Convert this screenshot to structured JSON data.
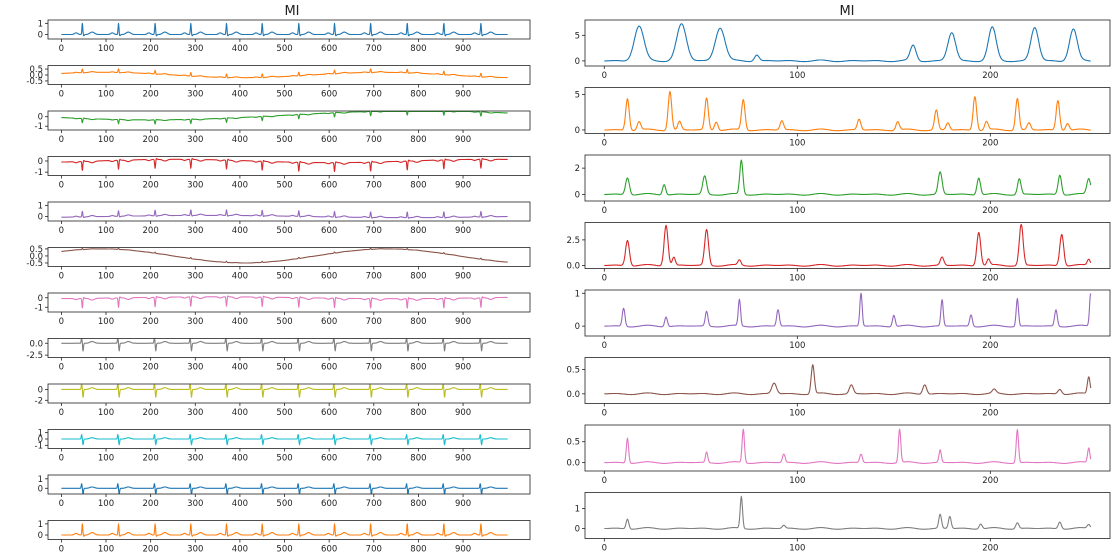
{
  "colors": [
    "#1f77b4",
    "#ff7f0e",
    "#2ca02c",
    "#d62728",
    "#9467bd",
    "#8c564b",
    "#e377c2",
    "#7f7f7f",
    "#bcbd22",
    "#17becf",
    "#1f77b4",
    "#ff7f0e"
  ],
  "chart_data": [
    {
      "type": "line",
      "title": "MI",
      "x_ticks": [
        "0",
        "100",
        "200",
        "300",
        "400",
        "500",
        "600",
        "700",
        "800",
        "900"
      ],
      "xlim": [
        -30,
        1050
      ],
      "beat_positions": [
        47,
        128,
        210,
        290,
        370,
        450,
        532,
        612,
        693,
        775,
        857,
        940
      ],
      "panels": [
        {
          "ylim": [
            -0.4,
            1.3
          ],
          "y_ticks": [
            "1",
            "0"
          ],
          "y_tick_values": [
            1,
            0
          ],
          "baseline": 0,
          "drift": 0,
          "beat_shape": "upr",
          "beat_amp": 1.0
        },
        {
          "ylim": [
            -0.8,
            0.8
          ],
          "y_ticks": [
            "0.5",
            "0.0",
            "-0.5"
          ],
          "y_tick_values": [
            0.5,
            0.0,
            -0.5
          ],
          "baseline": 0,
          "drift": 0.25,
          "beat_shape": "upr",
          "beat_amp": 0.3
        },
        {
          "ylim": [
            -1.4,
            0.6
          ],
          "y_ticks": [
            "0",
            "-1"
          ],
          "y_tick_values": [
            0,
            -1
          ],
          "baseline": 0,
          "drift": 0.4,
          "beat_shape": "downr",
          "beat_amp": 0.45
        },
        {
          "ylim": [
            -1.3,
            0.4
          ],
          "y_ticks": [
            "0",
            "-1"
          ],
          "y_tick_values": [
            0,
            -1
          ],
          "baseline": 0,
          "drift": 0.15,
          "beat_shape": "downr",
          "beat_amp": 0.8
        },
        {
          "ylim": [
            -0.4,
            1.3
          ],
          "y_ticks": [
            "1",
            "0"
          ],
          "y_tick_values": [
            1,
            0
          ],
          "baseline": 0,
          "drift": 0.1,
          "beat_shape": "upr",
          "beat_amp": 0.5
        },
        {
          "ylim": [
            -0.75,
            0.6
          ],
          "y_ticks": [
            "0.5",
            "0.0",
            "-0.5"
          ],
          "y_tick_values": [
            0.5,
            0.0,
            -0.5
          ],
          "baseline": 0,
          "drift": 0.5,
          "beat_shape": "upr",
          "beat_amp": 0.08
        },
        {
          "ylim": [
            -1.5,
            0.5
          ],
          "y_ticks": [
            "0",
            "-1"
          ],
          "y_tick_values": [
            0,
            -1
          ],
          "baseline": 0,
          "drift": 0.1,
          "beat_shape": "downr",
          "beat_amp": 1.0
        },
        {
          "ylim": [
            -3.0,
            1.0
          ],
          "y_ticks": [
            "0.0",
            "-2.5"
          ],
          "y_tick_values": [
            0.0,
            -2.5
          ],
          "baseline": 0,
          "drift": 0,
          "beat_shape": "biphasic",
          "beat_amp": 1.8
        },
        {
          "ylim": [
            -2.5,
            1.0
          ],
          "y_ticks": [
            "0",
            "-2"
          ],
          "y_tick_values": [
            0,
            -2
          ],
          "baseline": 0,
          "drift": 0,
          "beat_shape": "biphasic",
          "beat_amp": 1.6
        },
        {
          "ylim": [
            -1.5,
            1.5
          ],
          "y_ticks": [
            "1",
            "0",
            "-1"
          ],
          "y_tick_values": [
            1,
            0,
            -1
          ],
          "baseline": 0,
          "drift": 0,
          "beat_shape": "biphasic",
          "beat_amp": 1.0
        },
        {
          "ylim": [
            -0.6,
            1.4
          ],
          "y_ticks": [
            "1",
            "0"
          ],
          "y_tick_values": [
            1,
            0
          ],
          "baseline": 0,
          "drift": 0,
          "beat_shape": "biphasic",
          "beat_amp": 0.7
        },
        {
          "ylim": [
            -0.4,
            1.3
          ],
          "y_ticks": [
            "1",
            "0"
          ],
          "y_tick_values": [
            1,
            0
          ],
          "baseline": 0,
          "drift": 0,
          "beat_shape": "upr",
          "beat_amp": 1.0
        }
      ]
    },
    {
      "type": "line",
      "title": "MI",
      "x_ticks": [
        "0",
        "100",
        "200"
      ],
      "xlim": [
        -10,
        262
      ],
      "panels": [
        {
          "ylim": [
            -1,
            8
          ],
          "y_ticks": [
            "5",
            "0"
          ],
          "y_tick_values": [
            5,
            0
          ],
          "peaks": [
            [
              18,
              6.8,
              2.5
            ],
            [
              40,
              7.2,
              2.5
            ],
            [
              60,
              6.5,
              2.5
            ],
            [
              79,
              1.2,
              1.2
            ],
            [
              160,
              3.0,
              1.5
            ],
            [
              180,
              5.5,
              2.0
            ],
            [
              201,
              6.5,
              2.0
            ],
            [
              223,
              6.5,
              2.0
            ],
            [
              243,
              6.2,
              2.0
            ]
          ]
        },
        {
          "ylim": [
            -0.5,
            6
          ],
          "y_ticks": [
            "5",
            "0"
          ],
          "y_tick_values": [
            5,
            0
          ],
          "peaks": [
            [
              12,
              4.5,
              0.9
            ],
            [
              18,
              1.2,
              0.9
            ],
            [
              34,
              5.5,
              0.9
            ],
            [
              39,
              1.2,
              0.9
            ],
            [
              53,
              4.5,
              0.9
            ],
            [
              58,
              1.2,
              0.9
            ],
            [
              72,
              4.3,
              0.9
            ],
            [
              92,
              1.3,
              0.9
            ],
            [
              132,
              1.5,
              0.9
            ],
            [
              152,
              1.2,
              0.9
            ],
            [
              172,
              2.8,
              0.9
            ],
            [
              178,
              1.0,
              0.9
            ],
            [
              192,
              4.8,
              0.9
            ],
            [
              198,
              1.2,
              0.9
            ],
            [
              214,
              4.5,
              0.9
            ],
            [
              220,
              1.0,
              0.9
            ],
            [
              235,
              4.2,
              0.9
            ],
            [
              240,
              1.0,
              0.9
            ]
          ]
        },
        {
          "ylim": [
            -0.5,
            3
          ],
          "y_ticks": [
            "2",
            "0"
          ],
          "y_tick_values": [
            2,
            0
          ],
          "peaks": [
            [
              12,
              1.3,
              1.0
            ],
            [
              31,
              0.8,
              0.8
            ],
            [
              52,
              1.4,
              1.0
            ],
            [
              71,
              2.6,
              0.8
            ],
            [
              174,
              1.7,
              1.0
            ],
            [
              194,
              1.3,
              0.9
            ],
            [
              215,
              1.2,
              0.9
            ],
            [
              236,
              1.5,
              0.9
            ],
            [
              251,
              1.2,
              1.0
            ]
          ]
        },
        {
          "ylim": [
            -0.3,
            4.2
          ],
          "y_ticks": [
            "2.5",
            "0.0"
          ],
          "y_tick_values": [
            2.5,
            0.0
          ],
          "peaks": [
            [
              12,
              2.5,
              1.0
            ],
            [
              32,
              4.0,
              1.0
            ],
            [
              36,
              0.8,
              0.8
            ],
            [
              53,
              3.5,
              1.0
            ],
            [
              70,
              0.5,
              0.8
            ],
            [
              175,
              0.8,
              0.9
            ],
            [
              194,
              3.3,
              1.0
            ],
            [
              199,
              0.6,
              0.8
            ],
            [
              216,
              4.0,
              1.0
            ],
            [
              237,
              3.1,
              1.0
            ],
            [
              251,
              0.6,
              0.8
            ]
          ]
        },
        {
          "ylim": [
            -0.3,
            1.1
          ],
          "y_ticks": [
            "1",
            "0"
          ],
          "y_tick_values": [
            1,
            0
          ],
          "peaks": [
            [
              10,
              0.55,
              0.7
            ],
            [
              32,
              0.3,
              0.7
            ],
            [
              53,
              0.45,
              0.7
            ],
            [
              70,
              0.8,
              0.6
            ],
            [
              90,
              0.5,
              0.7
            ],
            [
              133,
              1.0,
              0.6
            ],
            [
              150,
              0.35,
              0.7
            ],
            [
              175,
              0.8,
              0.6
            ],
            [
              190,
              0.35,
              0.7
            ],
            [
              214,
              0.85,
              0.6
            ],
            [
              234,
              0.5,
              0.7
            ],
            [
              252,
              1.0,
              0.6
            ]
          ]
        },
        {
          "ylim": [
            -0.2,
            0.75
          ],
          "y_ticks": [
            "0.5",
            "0.0"
          ],
          "y_tick_values": [
            0.5,
            0.0
          ],
          "peaks": [
            [
              88,
              0.22,
              1.2
            ],
            [
              108,
              0.6,
              0.8
            ],
            [
              128,
              0.18,
              1.0
            ],
            [
              166,
              0.2,
              1.0
            ],
            [
              202,
              0.08,
              1.0
            ],
            [
              236,
              0.1,
              1.0
            ],
            [
              251,
              0.35,
              0.7
            ]
          ]
        },
        {
          "ylim": [
            -0.2,
            0.9
          ],
          "y_ticks": [
            "0.5",
            "0.0"
          ],
          "y_tick_values": [
            0.5,
            0.0
          ],
          "peaks": [
            [
              12,
              0.6,
              0.6
            ],
            [
              53,
              0.25,
              0.6
            ],
            [
              72,
              0.8,
              0.6
            ],
            [
              93,
              0.2,
              0.7
            ],
            [
              133,
              0.2,
              0.7
            ],
            [
              153,
              0.8,
              0.6
            ],
            [
              174,
              0.3,
              0.6
            ],
            [
              214,
              0.8,
              0.6
            ],
            [
              251,
              0.35,
              0.6
            ]
          ]
        },
        {
          "ylim": [
            -0.5,
            1.8
          ],
          "y_ticks": [
            "1",
            "0"
          ],
          "y_tick_values": [
            1,
            0
          ],
          "peaks": [
            [
              12,
              0.5,
              0.7
            ],
            [
              71,
              1.6,
              0.6
            ],
            [
              93,
              0.15,
              0.8
            ],
            [
              174,
              0.7,
              0.7
            ],
            [
              179,
              0.6,
              0.7
            ],
            [
              195,
              0.25,
              0.8
            ],
            [
              214,
              0.3,
              0.8
            ],
            [
              236,
              0.35,
              0.8
            ],
            [
              251,
              0.2,
              0.8
            ]
          ]
        }
      ]
    }
  ]
}
